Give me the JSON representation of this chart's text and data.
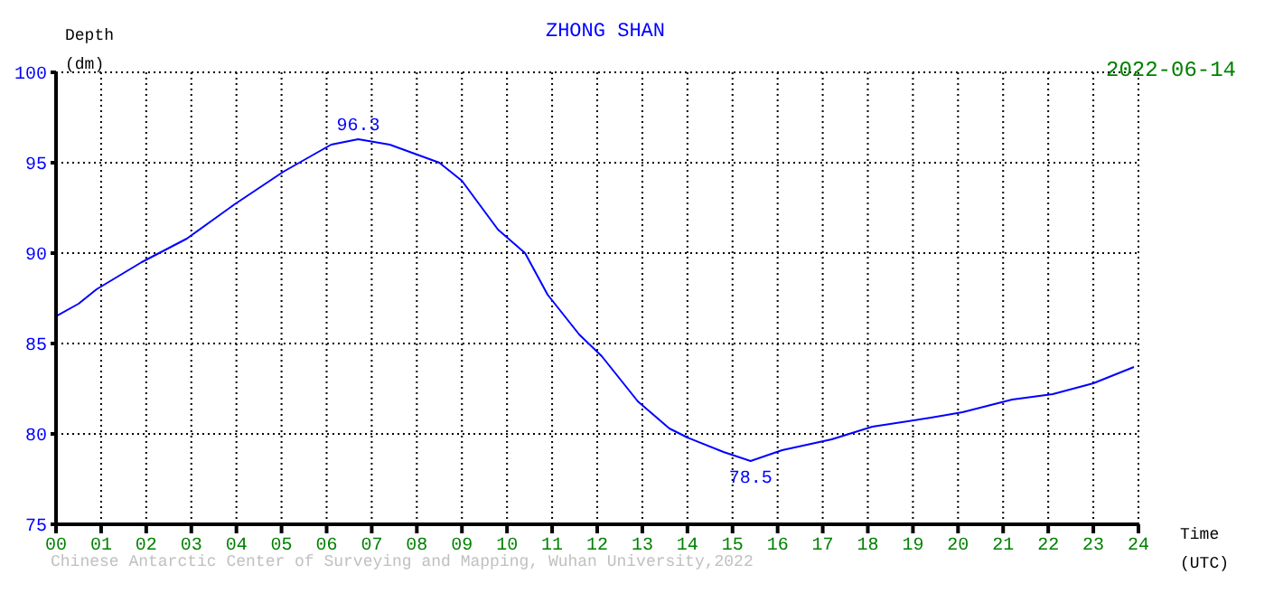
{
  "chart_data": {
    "type": "line",
    "title": "ZHONG SHAN",
    "xlabel": "Time (UTC)",
    "ylabel": "Depth (dm)",
    "x": [
      0,
      0.5,
      0.9,
      1.9,
      2.9,
      3.96,
      5.04,
      6.1,
      6.7,
      7.4,
      8.5,
      9.0,
      9.8,
      10.4,
      10.9,
      11.6,
      12.1,
      12.9,
      13.6,
      14.0,
      14.8,
      15.4,
      16.1,
      17.2,
      18.1,
      19.4,
      20.1,
      21.2,
      22.1,
      23.0,
      23.9
    ],
    "series": [
      {
        "color": "#0000ff",
        "values": [
          86.5,
          87.2,
          88.0,
          89.5,
          90.8,
          92.7,
          94.5,
          96.0,
          96.3,
          96.0,
          95.0,
          94.0,
          91.3,
          90.0,
          87.7,
          85.5,
          84.3,
          81.8,
          80.3,
          79.8,
          79.0,
          78.5,
          79.1,
          79.7,
          80.4,
          80.9,
          81.2,
          81.9,
          82.2,
          82.8,
          83.7
        ]
      }
    ],
    "xlim": [
      0,
      24
    ],
    "xticks": [
      {
        "value": 0,
        "label": "00"
      },
      {
        "value": 1,
        "label": "01"
      },
      {
        "value": 2,
        "label": "02"
      },
      {
        "value": 3,
        "label": "03"
      },
      {
        "value": 4,
        "label": "04"
      },
      {
        "value": 5,
        "label": "05"
      },
      {
        "value": 6,
        "label": "06"
      },
      {
        "value": 7,
        "label": "07"
      },
      {
        "value": 8,
        "label": "08"
      },
      {
        "value": 9,
        "label": "09"
      },
      10,
      11,
      12,
      13,
      14,
      15,
      16,
      17,
      18,
      19,
      20,
      21,
      22,
      23,
      24
    ],
    "ylim": [
      75,
      100
    ],
    "yticks": [
      75,
      80,
      85,
      90,
      95,
      100
    ],
    "grid": true,
    "marker": "none",
    "line_style": "solid",
    "annotations": [
      {
        "text": "96.3",
        "x": 6.7,
        "y": 96.3
      },
      {
        "text": "78.5",
        "x": 15.4,
        "y": 78.5
      },
      "2022-06-14",
      "Chinese Antarctic Center of Surveying and Mapping, Wuhan University,2022"
    ]
  }
}
